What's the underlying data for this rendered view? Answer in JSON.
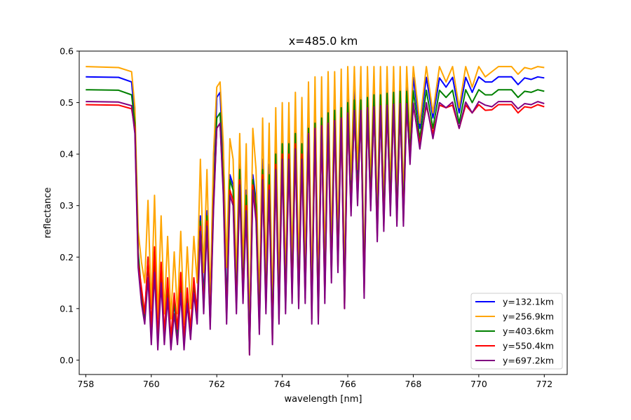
{
  "chart_data": {
    "type": "line",
    "title": "x=485.0 km",
    "xlabel": "wavelength [nm]",
    "ylabel": "reflectance",
    "xlim": [
      757.8,
      772.7
    ],
    "ylim": [
      -0.028,
      0.6
    ],
    "xticks": [
      758,
      760,
      762,
      764,
      766,
      768,
      770,
      772
    ],
    "yticks": [
      0.0,
      0.1,
      0.2,
      0.3,
      0.4,
      0.5,
      0.6
    ],
    "xtick_labels": [
      "758",
      "760",
      "762",
      "764",
      "766",
      "768",
      "770",
      "772"
    ],
    "ytick_labels": [
      "0.0",
      "0.1",
      "0.2",
      "0.3",
      "0.4",
      "0.5",
      "0.6"
    ],
    "grid": false,
    "legend_position": "lower-right",
    "legend": {
      "labels": [
        "y=132.1km",
        "y=256.9km",
        "y=403.6km",
        "y=550.4km",
        "y=697.2km"
      ]
    },
    "series": [
      {
        "name": "y=132.1km",
        "color": "#0000ff",
        "continuum": 0.55,
        "x": [
          758.0,
          759.0,
          759.4,
          759.5,
          759.6,
          759.7,
          759.8,
          759.9,
          760.0,
          760.1,
          760.2,
          760.3,
          760.4,
          760.5,
          760.6,
          760.7,
          760.8,
          760.9,
          761.0,
          761.1,
          761.2,
          761.3,
          761.4,
          761.5,
          761.6,
          761.7,
          761.8,
          761.9,
          762.0,
          762.1,
          762.2,
          762.3,
          762.4,
          762.5,
          762.6,
          762.7,
          762.8,
          762.9,
          763.0,
          763.1,
          763.2,
          763.3,
          763.4,
          763.5,
          763.6,
          763.7,
          763.8,
          763.9,
          764.0,
          764.1,
          764.2,
          764.3,
          764.4,
          764.5,
          764.6,
          764.7,
          764.8,
          764.9,
          765.0,
          765.1,
          765.2,
          765.3,
          765.4,
          765.5,
          765.6,
          765.7,
          765.8,
          765.9,
          766.0,
          766.1,
          766.2,
          766.3,
          766.4,
          766.5,
          766.6,
          766.7,
          766.8,
          766.9,
          767.0,
          767.1,
          767.2,
          767.3,
          767.4,
          767.5,
          767.6,
          767.7,
          767.8,
          767.9,
          768.0,
          768.2,
          768.4,
          768.6,
          768.8,
          769.0,
          769.2,
          769.4,
          769.6,
          769.8,
          770.0,
          770.2,
          770.4,
          770.6,
          770.8,
          771.0,
          771.2,
          771.4,
          771.6,
          771.8,
          772.0
        ],
        "y": [
          0.55,
          0.549,
          0.54,
          0.47,
          0.2,
          0.12,
          0.09,
          0.19,
          0.06,
          0.2,
          0.04,
          0.17,
          0.05,
          0.14,
          0.04,
          0.11,
          0.05,
          0.15,
          0.04,
          0.12,
          0.06,
          0.14,
          0.1,
          0.28,
          0.12,
          0.29,
          0.08,
          0.32,
          0.51,
          0.52,
          0.38,
          0.1,
          0.36,
          0.34,
          0.12,
          0.39,
          0.14,
          0.33,
          0.03,
          0.36,
          0.31,
          0.08,
          0.39,
          0.12,
          0.38,
          0.06,
          0.42,
          0.1,
          0.44,
          0.12,
          0.44,
          0.14,
          0.45,
          0.13,
          0.42,
          0.14,
          0.48,
          0.1,
          0.49,
          0.1,
          0.5,
          0.14,
          0.51,
          0.18,
          0.51,
          0.2,
          0.52,
          0.12,
          0.53,
          0.32,
          0.53,
          0.34,
          0.53,
          0.15,
          0.54,
          0.33,
          0.54,
          0.27,
          0.545,
          0.29,
          0.545,
          0.32,
          0.545,
          0.3,
          0.548,
          0.3,
          0.548,
          0.42,
          0.549,
          0.45,
          0.549,
          0.47,
          0.548,
          0.53,
          0.549,
          0.48,
          0.549,
          0.52,
          0.55,
          0.54,
          0.54,
          0.55,
          0.55,
          0.55,
          0.535,
          0.548,
          0.545,
          0.55,
          0.548
        ]
      },
      {
        "name": "y=256.9km",
        "color": "#ffa500",
        "continuum": 0.57,
        "x": [
          758.0,
          759.0,
          759.4,
          759.5,
          759.6,
          759.7,
          759.8,
          759.9,
          760.0,
          760.1,
          760.2,
          760.3,
          760.4,
          760.5,
          760.6,
          760.7,
          760.8,
          760.9,
          761.0,
          761.1,
          761.2,
          761.3,
          761.4,
          761.5,
          761.6,
          761.7,
          761.8,
          761.9,
          762.0,
          762.1,
          762.2,
          762.3,
          762.4,
          762.5,
          762.6,
          762.7,
          762.8,
          762.9,
          763.0,
          763.1,
          763.2,
          763.3,
          763.4,
          763.5,
          763.6,
          763.7,
          763.8,
          763.9,
          764.0,
          764.1,
          764.2,
          764.3,
          764.4,
          764.5,
          764.6,
          764.7,
          764.8,
          764.9,
          765.0,
          765.1,
          765.2,
          765.3,
          765.4,
          765.5,
          765.6,
          765.7,
          765.8,
          765.9,
          766.0,
          766.1,
          766.2,
          766.3,
          766.4,
          766.5,
          766.6,
          766.7,
          766.8,
          766.9,
          767.0,
          767.1,
          767.2,
          767.3,
          767.4,
          767.5,
          767.6,
          767.7,
          767.8,
          767.9,
          768.0,
          768.2,
          768.4,
          768.6,
          768.8,
          769.0,
          769.2,
          769.4,
          769.6,
          769.8,
          770.0,
          770.2,
          770.4,
          770.6,
          770.8,
          771.0,
          771.2,
          771.4,
          771.6,
          771.8,
          772.0
        ],
        "y": [
          0.57,
          0.568,
          0.56,
          0.49,
          0.25,
          0.19,
          0.15,
          0.31,
          0.1,
          0.32,
          0.08,
          0.28,
          0.09,
          0.24,
          0.08,
          0.21,
          0.09,
          0.25,
          0.07,
          0.22,
          0.1,
          0.24,
          0.15,
          0.39,
          0.17,
          0.37,
          0.11,
          0.4,
          0.53,
          0.54,
          0.42,
          0.18,
          0.43,
          0.39,
          0.16,
          0.44,
          0.18,
          0.42,
          0.05,
          0.45,
          0.37,
          0.11,
          0.47,
          0.16,
          0.46,
          0.09,
          0.49,
          0.13,
          0.5,
          0.15,
          0.5,
          0.18,
          0.52,
          0.17,
          0.51,
          0.18,
          0.54,
          0.13,
          0.55,
          0.13,
          0.55,
          0.18,
          0.56,
          0.21,
          0.56,
          0.23,
          0.565,
          0.15,
          0.57,
          0.35,
          0.57,
          0.37,
          0.57,
          0.16,
          0.57,
          0.34,
          0.57,
          0.28,
          0.57,
          0.3,
          0.57,
          0.33,
          0.57,
          0.31,
          0.57,
          0.31,
          0.57,
          0.43,
          0.57,
          0.46,
          0.57,
          0.48,
          0.57,
          0.54,
          0.57,
          0.49,
          0.57,
          0.53,
          0.57,
          0.55,
          0.56,
          0.57,
          0.57,
          0.57,
          0.555,
          0.568,
          0.565,
          0.57,
          0.568
        ]
      },
      {
        "name": "y=403.6km",
        "color": "#008000",
        "continuum": 0.525,
        "x": [
          758.0,
          759.0,
          759.4,
          759.5,
          759.6,
          759.7,
          759.8,
          759.9,
          760.0,
          760.1,
          760.2,
          760.3,
          760.4,
          760.5,
          760.6,
          760.7,
          760.8,
          760.9,
          761.0,
          761.1,
          761.2,
          761.3,
          761.4,
          761.5,
          761.6,
          761.7,
          761.8,
          761.9,
          762.0,
          762.1,
          762.2,
          762.3,
          762.4,
          762.5,
          762.6,
          762.7,
          762.8,
          762.9,
          763.0,
          763.1,
          763.2,
          763.3,
          763.4,
          763.5,
          763.6,
          763.7,
          763.8,
          763.9,
          764.0,
          764.1,
          764.2,
          764.3,
          764.4,
          764.5,
          764.6,
          764.7,
          764.8,
          764.9,
          765.0,
          765.1,
          765.2,
          765.3,
          765.4,
          765.5,
          765.6,
          765.7,
          765.8,
          765.9,
          766.0,
          766.1,
          766.2,
          766.3,
          766.4,
          766.5,
          766.6,
          766.7,
          766.8,
          766.9,
          767.0,
          767.1,
          767.2,
          767.3,
          767.4,
          767.5,
          767.6,
          767.7,
          767.8,
          767.9,
          768.0,
          768.2,
          768.4,
          768.6,
          768.8,
          769.0,
          769.2,
          769.4,
          769.6,
          769.8,
          770.0,
          770.2,
          770.4,
          770.6,
          770.8,
          771.0,
          771.2,
          771.4,
          771.6,
          771.8,
          772.0
        ],
        "y": [
          0.525,
          0.524,
          0.515,
          0.46,
          0.21,
          0.13,
          0.08,
          0.2,
          0.05,
          0.21,
          0.03,
          0.18,
          0.04,
          0.15,
          0.03,
          0.12,
          0.04,
          0.16,
          0.03,
          0.13,
          0.05,
          0.15,
          0.09,
          0.27,
          0.11,
          0.28,
          0.07,
          0.31,
          0.47,
          0.48,
          0.35,
          0.09,
          0.35,
          0.33,
          0.11,
          0.37,
          0.13,
          0.32,
          0.02,
          0.35,
          0.3,
          0.07,
          0.37,
          0.11,
          0.36,
          0.05,
          0.4,
          0.09,
          0.42,
          0.11,
          0.42,
          0.13,
          0.44,
          0.12,
          0.42,
          0.13,
          0.45,
          0.09,
          0.46,
          0.09,
          0.47,
          0.13,
          0.48,
          0.17,
          0.485,
          0.19,
          0.49,
          0.11,
          0.5,
          0.3,
          0.505,
          0.32,
          0.505,
          0.14,
          0.51,
          0.31,
          0.515,
          0.25,
          0.515,
          0.27,
          0.518,
          0.3,
          0.52,
          0.28,
          0.522,
          0.28,
          0.522,
          0.4,
          0.523,
          0.43,
          0.524,
          0.45,
          0.524,
          0.51,
          0.524,
          0.46,
          0.525,
          0.5,
          0.525,
          0.515,
          0.515,
          0.525,
          0.525,
          0.525,
          0.51,
          0.522,
          0.52,
          0.525,
          0.522
        ]
      },
      {
        "name": "y=550.4km",
        "color": "#ff0000",
        "continuum": 0.496,
        "x": [
          758.0,
          759.0,
          759.4,
          759.5,
          759.6,
          759.7,
          759.8,
          759.9,
          760.0,
          760.1,
          760.2,
          760.3,
          760.4,
          760.5,
          760.6,
          760.7,
          760.8,
          760.9,
          761.0,
          761.1,
          761.2,
          761.3,
          761.4,
          761.5,
          761.6,
          761.7,
          761.8,
          761.9,
          762.0,
          762.1,
          762.2,
          762.3,
          762.4,
          762.5,
          762.6,
          762.7,
          762.8,
          762.9,
          763.0,
          763.1,
          763.2,
          763.3,
          763.4,
          763.5,
          763.6,
          763.7,
          763.8,
          763.9,
          764.0,
          764.1,
          764.2,
          764.3,
          764.4,
          764.5,
          764.6,
          764.7,
          764.8,
          764.9,
          765.0,
          765.1,
          765.2,
          765.3,
          765.4,
          765.5,
          765.6,
          765.7,
          765.8,
          765.9,
          766.0,
          766.1,
          766.2,
          766.3,
          766.4,
          766.5,
          766.6,
          766.7,
          766.8,
          766.9,
          767.0,
          767.1,
          767.2,
          767.3,
          767.4,
          767.5,
          767.6,
          767.7,
          767.8,
          767.9,
          768.0,
          768.2,
          768.4,
          768.6,
          768.8,
          769.0,
          769.2,
          769.4,
          769.6,
          769.8,
          770.0,
          770.2,
          770.4,
          770.6,
          770.8,
          771.0,
          771.2,
          771.4,
          771.6,
          771.8,
          772.0
        ],
        "y": [
          0.496,
          0.495,
          0.488,
          0.45,
          0.19,
          0.14,
          0.09,
          0.2,
          0.06,
          0.22,
          0.04,
          0.19,
          0.05,
          0.16,
          0.04,
          0.13,
          0.06,
          0.17,
          0.04,
          0.14,
          0.06,
          0.16,
          0.09,
          0.26,
          0.1,
          0.27,
          0.07,
          0.3,
          0.45,
          0.46,
          0.33,
          0.08,
          0.33,
          0.31,
          0.1,
          0.35,
          0.12,
          0.3,
          0.01,
          0.34,
          0.28,
          0.06,
          0.36,
          0.1,
          0.34,
          0.04,
          0.38,
          0.08,
          0.4,
          0.1,
          0.4,
          0.12,
          0.42,
          0.11,
          0.4,
          0.12,
          0.44,
          0.08,
          0.45,
          0.08,
          0.455,
          0.12,
          0.46,
          0.16,
          0.465,
          0.18,
          0.47,
          0.1,
          0.475,
          0.29,
          0.48,
          0.31,
          0.48,
          0.13,
          0.485,
          0.3,
          0.488,
          0.24,
          0.49,
          0.26,
          0.49,
          0.29,
          0.492,
          0.27,
          0.493,
          0.27,
          0.493,
          0.39,
          0.494,
          0.42,
          0.494,
          0.44,
          0.495,
          0.49,
          0.495,
          0.45,
          0.495,
          0.48,
          0.496,
          0.485,
          0.486,
          0.496,
          0.496,
          0.496,
          0.48,
          0.492,
          0.49,
          0.496,
          0.492
        ]
      },
      {
        "name": "y=697.2km",
        "color": "#800080",
        "continuum": 0.502,
        "x": [
          758.0,
          759.0,
          759.4,
          759.5,
          759.6,
          759.7,
          759.8,
          759.9,
          760.0,
          760.1,
          760.2,
          760.3,
          760.4,
          760.5,
          760.6,
          760.7,
          760.8,
          760.9,
          761.0,
          761.1,
          761.2,
          761.3,
          761.4,
          761.5,
          761.6,
          761.7,
          761.8,
          761.9,
          762.0,
          762.1,
          762.2,
          762.3,
          762.4,
          762.5,
          762.6,
          762.7,
          762.8,
          762.9,
          763.0,
          763.1,
          763.2,
          763.3,
          763.4,
          763.5,
          763.6,
          763.7,
          763.8,
          763.9,
          764.0,
          764.1,
          764.2,
          764.3,
          764.4,
          764.5,
          764.6,
          764.7,
          764.8,
          764.9,
          765.0,
          765.1,
          765.2,
          765.3,
          765.4,
          765.5,
          765.6,
          765.7,
          765.8,
          765.9,
          766.0,
          766.1,
          766.2,
          766.3,
          766.4,
          766.5,
          766.6,
          766.7,
          766.8,
          766.9,
          767.0,
          767.1,
          767.2,
          767.3,
          767.4,
          767.5,
          767.6,
          767.7,
          767.8,
          767.9,
          768.0,
          768.2,
          768.4,
          768.6,
          768.8,
          769.0,
          769.2,
          769.4,
          769.6,
          769.8,
          770.0,
          770.2,
          770.4,
          770.6,
          770.8,
          771.0,
          771.2,
          771.4,
          771.6,
          771.8,
          772.0
        ],
        "y": [
          0.502,
          0.501,
          0.494,
          0.44,
          0.18,
          0.11,
          0.07,
          0.16,
          0.03,
          0.17,
          0.02,
          0.15,
          0.03,
          0.12,
          0.02,
          0.09,
          0.03,
          0.13,
          0.02,
          0.11,
          0.04,
          0.13,
          0.07,
          0.25,
          0.09,
          0.26,
          0.06,
          0.29,
          0.45,
          0.46,
          0.32,
          0.07,
          0.32,
          0.3,
          0.09,
          0.34,
          0.11,
          0.29,
          0.01,
          0.33,
          0.27,
          0.05,
          0.35,
          0.09,
          0.33,
          0.03,
          0.37,
          0.07,
          0.39,
          0.09,
          0.39,
          0.11,
          0.41,
          0.1,
          0.39,
          0.11,
          0.44,
          0.07,
          0.45,
          0.07,
          0.455,
          0.11,
          0.46,
          0.15,
          0.465,
          0.17,
          0.47,
          0.1,
          0.48,
          0.28,
          0.485,
          0.3,
          0.485,
          0.12,
          0.49,
          0.29,
          0.492,
          0.23,
          0.494,
          0.25,
          0.495,
          0.28,
          0.497,
          0.26,
          0.498,
          0.26,
          0.498,
          0.38,
          0.499,
          0.41,
          0.5,
          0.43,
          0.5,
          0.49,
          0.501,
          0.45,
          0.501,
          0.48,
          0.502,
          0.495,
          0.492,
          0.502,
          0.502,
          0.502,
          0.488,
          0.498,
          0.496,
          0.502,
          0.498
        ]
      }
    ]
  }
}
